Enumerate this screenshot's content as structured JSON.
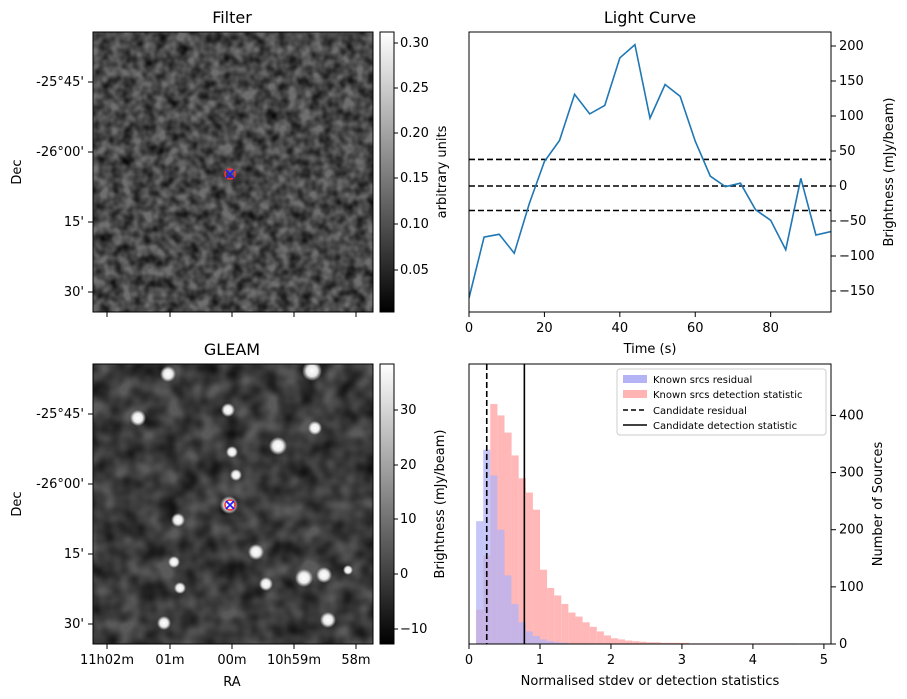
{
  "chart_data": [
    {
      "type": "image",
      "title": "Filter",
      "ylabel": "Dec",
      "yticks": [
        "-25°45'",
        "-26°00'",
        "15'",
        "30'"
      ],
      "colorbar": {
        "label": "arbitrary units",
        "range": [
          0.005,
          0.31
        ],
        "ticks": [
          "0.05",
          "0.10",
          "0.15",
          "0.20",
          "0.25",
          "0.30"
        ]
      },
      "markers": [
        "blue-x",
        "red-circle"
      ]
    },
    {
      "type": "line",
      "title": "Light Curve",
      "xlabel": "Time (s)",
      "ylabel": "Brightness (mJy/beam)",
      "xlim": [
        0,
        96
      ],
      "ylim": [
        -180,
        220
      ],
      "xticks": [
        0,
        20,
        40,
        60,
        80
      ],
      "yticks": [
        -150,
        -100,
        -50,
        0,
        50,
        100,
        150,
        200
      ],
      "x": [
        0,
        4,
        8,
        12,
        16,
        20,
        24,
        28,
        32,
        36,
        40,
        44,
        48,
        52,
        56,
        60,
        64,
        68,
        72,
        76,
        80,
        84,
        88,
        92,
        96
      ],
      "series": [
        {
          "values": [
            -160,
            -73,
            -69,
            -96,
            -25,
            35,
            65,
            131,
            103,
            115,
            183,
            202,
            97,
            145,
            128,
            64,
            14,
            -1,
            4,
            -34,
            -49,
            -91,
            11,
            -70,
            -65
          ],
          "color": "#1f77b4"
        }
      ],
      "hlines": [
        -35,
        0,
        38
      ],
      "hline_color": "#000000"
    },
    {
      "type": "image",
      "title": "GLEAM",
      "xlabel": "RA",
      "ylabel": "Dec",
      "yticks": [
        "-25°45'",
        "-26°00'",
        "15'",
        "30'"
      ],
      "xticks": [
        "11h02m",
        "01m",
        "00m",
        "10h59m",
        "58m"
      ],
      "colorbar": {
        "label": "Brightness (mJy/beam)",
        "range": [
          -13,
          38
        ],
        "ticks": [
          "−10",
          "0",
          "10",
          "20",
          "30"
        ]
      },
      "markers": [
        "blue-x",
        "red-circle"
      ]
    },
    {
      "type": "histogram",
      "xlabel": "Normalised stdev or detection statistics",
      "ylabel_right": "Number of Sources",
      "ylabel_left": "Brightness (mJy/beam)",
      "xlim": [
        0,
        5.1
      ],
      "ylim": [
        0,
        490
      ],
      "xticks": [
        0,
        1,
        2,
        3,
        4,
        5
      ],
      "yticks": [
        0,
        100,
        200,
        300,
        400
      ],
      "legend": "top-right",
      "bin_width": 0.1,
      "series": [
        {
          "name": "Known srcs residual",
          "color": "#b3b3f5",
          "bin_start": 0.0,
          "values": [
            0,
            215,
            340,
            295,
            200,
            120,
            70,
            38,
            22,
            14,
            8,
            5,
            3,
            2,
            1,
            1,
            1
          ]
        },
        {
          "name": "Known srcs detection statistic",
          "color": "#ffb3b3",
          "bin_start": 0.0,
          "values": [
            0,
            60,
            155,
            420,
            400,
            370,
            330,
            290,
            265,
            235,
            130,
            98,
            85,
            70,
            55,
            48,
            38,
            30,
            22,
            15,
            10,
            8,
            6,
            5,
            4,
            3,
            3,
            2,
            2,
            2,
            2,
            1,
            1,
            1,
            1,
            1,
            1,
            1,
            1,
            1,
            1,
            1,
            1,
            1,
            1,
            1
          ]
        }
      ],
      "vlines": [
        {
          "name": "Candidate residual",
          "x": 0.25,
          "style": "dashed",
          "color": "#000000"
        },
        {
          "name": "Candidate detection statistic",
          "x": 0.78,
          "style": "solid",
          "color": "#000000"
        }
      ]
    }
  ]
}
